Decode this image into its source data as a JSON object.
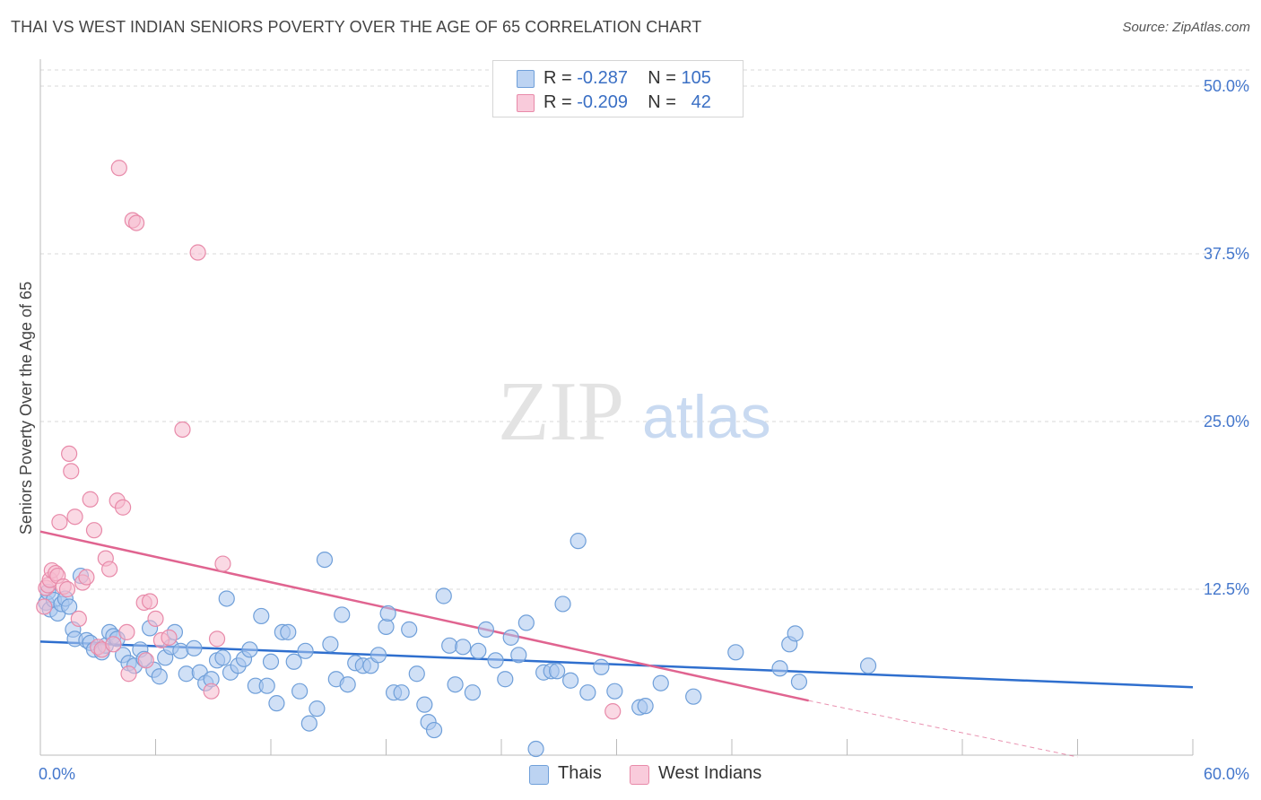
{
  "header": {
    "title": "THAI VS WEST INDIAN SENIORS POVERTY OVER THE AGE OF 65 CORRELATION CHART",
    "source": "Source: ZipAtlas.com"
  },
  "legend": {
    "rows": [
      {
        "r_label": "R = ",
        "r_value": "-0.287",
        "n_label": "N = ",
        "n_value": "105"
      },
      {
        "r_label": "R = ",
        "r_value": "-0.209",
        "n_label": "N = ",
        "n_value": "42"
      }
    ]
  },
  "bottom_legend": [
    "Thais",
    "West Indians"
  ],
  "watermark": {
    "zip": "ZIP",
    "atlas": "atlas"
  },
  "colors": {
    "thais_fill": "#a9c6ee",
    "thais_stroke": "#6f9fd9",
    "thais_line": "#2f6fce",
    "wi_fill": "#f6b9cd",
    "wi_stroke": "#e88aa9",
    "wi_line": "#e06490",
    "tick_text": "#4477cc",
    "grid": "#d9d9d9"
  },
  "chart_data": {
    "type": "scatter",
    "ylabel": "Seniors Poverty Over the Age of 65",
    "xlim": [
      0,
      60
    ],
    "ylim": [
      0,
      50
    ],
    "x_tick_labels": [
      {
        "value": 0,
        "label": "0.0%"
      },
      {
        "value": 60,
        "label": "60.0%"
      }
    ],
    "y_ticks": [
      {
        "value": 12.5,
        "label": "12.5%"
      },
      {
        "value": 25,
        "label": "25.0%"
      },
      {
        "value": 37.5,
        "label": "37.5%"
      },
      {
        "value": 50,
        "label": "50.0%"
      }
    ],
    "grid": "horizontal dashed",
    "series": [
      {
        "name": "Thais",
        "r": -0.287,
        "n": 105,
        "trend": {
          "x": [
            0,
            60
          ],
          "y": [
            8.6,
            5.2
          ]
        },
        "points": [
          [
            0.3,
            11.5
          ],
          [
            0.4,
            12.3
          ],
          [
            0.5,
            11.0
          ],
          [
            0.7,
            11.7
          ],
          [
            0.9,
            10.7
          ],
          [
            1.1,
            11.4
          ],
          [
            1.3,
            11.8
          ],
          [
            1.5,
            11.2
          ],
          [
            1.7,
            9.5
          ],
          [
            1.8,
            8.8
          ],
          [
            2.1,
            13.5
          ],
          [
            2.4,
            8.7
          ],
          [
            2.6,
            8.5
          ],
          [
            2.8,
            8.0
          ],
          [
            3.2,
            7.8
          ],
          [
            3.4,
            8.3
          ],
          [
            3.6,
            9.3
          ],
          [
            3.8,
            9.0
          ],
          [
            4.0,
            8.8
          ],
          [
            4.3,
            7.6
          ],
          [
            4.6,
            7.0
          ],
          [
            4.9,
            6.8
          ],
          [
            5.2,
            8.0
          ],
          [
            5.4,
            7.3
          ],
          [
            5.7,
            9.6
          ],
          [
            5.9,
            6.5
          ],
          [
            6.2,
            6.0
          ],
          [
            6.5,
            7.4
          ],
          [
            6.8,
            8.2
          ],
          [
            7.0,
            9.3
          ],
          [
            7.3,
            7.9
          ],
          [
            7.6,
            6.2
          ],
          [
            8.0,
            8.1
          ],
          [
            8.3,
            6.3
          ],
          [
            8.6,
            5.5
          ],
          [
            8.9,
            5.8
          ],
          [
            9.2,
            7.2
          ],
          [
            9.5,
            7.4
          ],
          [
            9.7,
            11.8
          ],
          [
            9.9,
            6.3
          ],
          [
            10.3,
            6.8
          ],
          [
            10.6,
            7.3
          ],
          [
            10.9,
            8.0
          ],
          [
            11.2,
            5.3
          ],
          [
            11.5,
            10.5
          ],
          [
            11.8,
            5.3
          ],
          [
            12.0,
            7.1
          ],
          [
            12.3,
            4.0
          ],
          [
            12.6,
            9.3
          ],
          [
            12.9,
            9.3
          ],
          [
            13.2,
            7.1
          ],
          [
            13.5,
            4.9
          ],
          [
            13.8,
            7.9
          ],
          [
            14.0,
            2.5
          ],
          [
            14.4,
            3.6
          ],
          [
            14.8,
            14.7
          ],
          [
            15.1,
            8.4
          ],
          [
            15.4,
            5.8
          ],
          [
            15.7,
            10.6
          ],
          [
            16.0,
            5.4
          ],
          [
            16.4,
            7.0
          ],
          [
            16.8,
            6.8
          ],
          [
            17.2,
            6.8
          ],
          [
            17.6,
            7.6
          ],
          [
            18.0,
            9.7
          ],
          [
            18.1,
            10.7
          ],
          [
            18.4,
            4.8
          ],
          [
            18.8,
            4.8
          ],
          [
            19.2,
            9.5
          ],
          [
            19.6,
            6.2
          ],
          [
            20.0,
            3.9
          ],
          [
            20.2,
            2.6
          ],
          [
            20.5,
            2.0
          ],
          [
            21.0,
            12.0
          ],
          [
            21.3,
            8.3
          ],
          [
            21.6,
            5.4
          ],
          [
            22.0,
            8.2
          ],
          [
            22.5,
            4.8
          ],
          [
            22.8,
            7.9
          ],
          [
            23.2,
            9.5
          ],
          [
            23.7,
            7.2
          ],
          [
            24.2,
            5.8
          ],
          [
            24.5,
            8.9
          ],
          [
            24.9,
            7.6
          ],
          [
            25.3,
            10.0
          ],
          [
            25.8,
            0.6
          ],
          [
            26.2,
            6.3
          ],
          [
            26.6,
            6.4
          ],
          [
            26.9,
            6.4
          ],
          [
            27.2,
            11.4
          ],
          [
            27.6,
            5.7
          ],
          [
            28.0,
            16.1
          ],
          [
            28.5,
            4.8
          ],
          [
            29.2,
            6.7
          ],
          [
            29.9,
            4.9
          ],
          [
            31.2,
            3.7
          ],
          [
            32.3,
            5.5
          ],
          [
            34.0,
            4.5
          ],
          [
            36.2,
            7.8
          ],
          [
            38.5,
            6.6
          ],
          [
            39.0,
            8.4
          ],
          [
            39.3,
            9.2
          ],
          [
            39.5,
            5.6
          ],
          [
            43.1,
            6.8
          ],
          [
            31.5,
            3.8
          ]
        ]
      },
      {
        "name": "West Indians",
        "r": -0.209,
        "n": 42,
        "trend": {
          "x": [
            0,
            40
          ],
          "y": [
            16.8,
            4.2
          ]
        },
        "trend_dashed": {
          "x": [
            40,
            54
          ],
          "y": [
            4.2,
            0.0
          ]
        },
        "points": [
          [
            0.2,
            11.2
          ],
          [
            0.3,
            12.6
          ],
          [
            0.4,
            12.8
          ],
          [
            0.5,
            13.2
          ],
          [
            0.6,
            13.9
          ],
          [
            0.8,
            13.7
          ],
          [
            0.9,
            13.5
          ],
          [
            1.0,
            17.5
          ],
          [
            1.2,
            12.7
          ],
          [
            1.4,
            12.5
          ],
          [
            1.5,
            22.6
          ],
          [
            1.6,
            21.3
          ],
          [
            1.8,
            17.9
          ],
          [
            2.0,
            10.3
          ],
          [
            2.2,
            13.0
          ],
          [
            2.4,
            13.4
          ],
          [
            2.6,
            19.2
          ],
          [
            2.8,
            16.9
          ],
          [
            3.0,
            8.2
          ],
          [
            3.2,
            8.0
          ],
          [
            3.4,
            14.8
          ],
          [
            3.6,
            14.0
          ],
          [
            3.8,
            8.4
          ],
          [
            4.0,
            19.1
          ],
          [
            4.3,
            18.6
          ],
          [
            4.5,
            9.3
          ],
          [
            4.8,
            40.0
          ],
          [
            5.0,
            39.8
          ],
          [
            4.1,
            43.9
          ],
          [
            5.4,
            11.5
          ],
          [
            5.7,
            11.6
          ],
          [
            6.0,
            10.3
          ],
          [
            6.3,
            8.7
          ],
          [
            6.7,
            8.9
          ],
          [
            7.4,
            24.4
          ],
          [
            8.2,
            37.6
          ],
          [
            8.9,
            4.9
          ],
          [
            9.5,
            14.4
          ],
          [
            9.2,
            8.8
          ],
          [
            4.6,
            6.2
          ],
          [
            5.5,
            7.2
          ],
          [
            29.8,
            3.4
          ]
        ]
      }
    ]
  }
}
